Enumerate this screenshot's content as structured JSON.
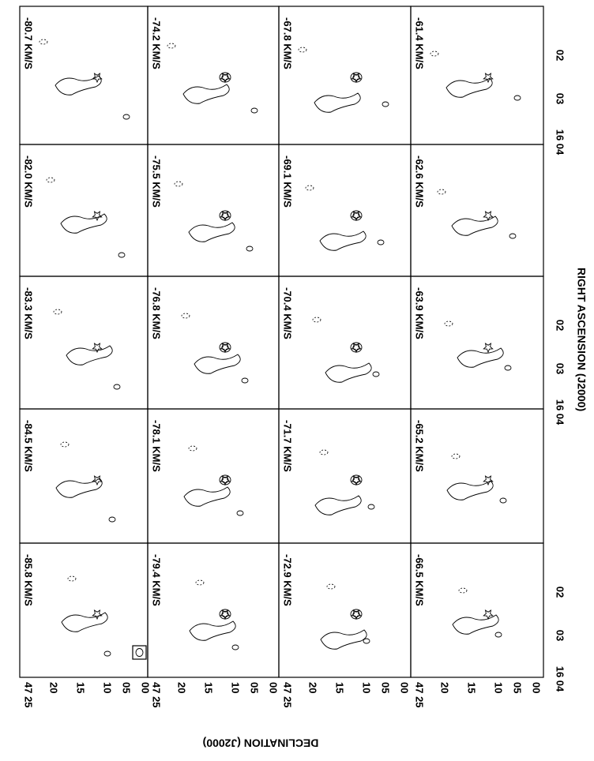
{
  "figure": {
    "panels": [
      [
        "-80.7 KM/S",
        "-82.0 KM/S",
        "-83.3 KM/S",
        "-84.5 KM/S",
        "-85.8 KM/S"
      ],
      [
        "-74.2 KM/S",
        "-75.5 KM/S",
        "-76.8 KM/S",
        "-78.1 KM/S",
        "-79.4 KM/S"
      ],
      [
        "-67.8 KM/S",
        "-69.1 KM/S",
        "-70.4 KM/S",
        "-71.7 KM/S",
        "-72.9 KM/S"
      ],
      [
        "-61.4 KM/S",
        "-62.6 KM/S",
        "-63.9 KM/S",
        "-65.2 KM/S",
        "-66.5 KM/S"
      ]
    ],
    "dec_ticks": [
      "47 25",
      "20",
      "15",
      "10",
      "05",
      "00"
    ],
    "ra_ticks": [
      "02",
      "03",
      "16 04"
    ],
    "dec_title": "DECLINATION (J2000)",
    "ra_title": "RIGHT ASCENSION (J2000)"
  }
}
